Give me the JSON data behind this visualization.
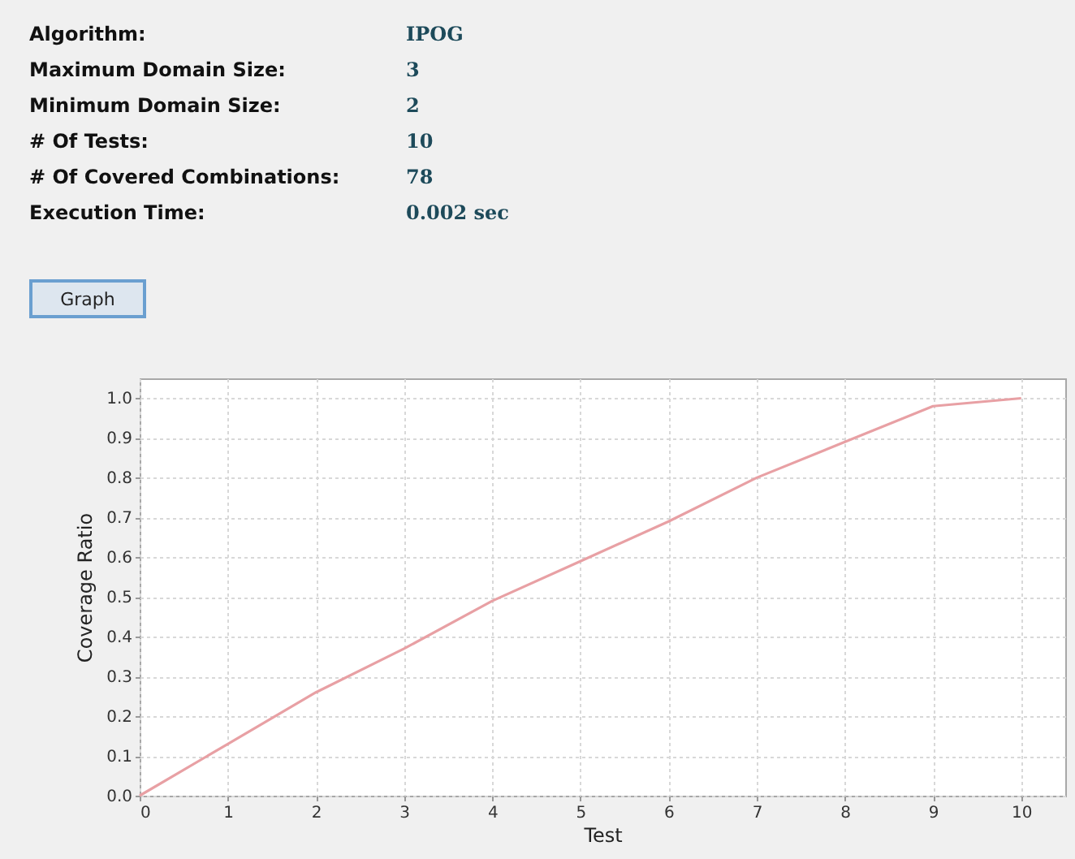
{
  "chart_data": [
    {
      "type": "other",
      "annotations": [
        "Algorithm:",
        "IPOG",
        "Maximum Domain Size:",
        "3",
        "Minimum Domain Size:",
        "2",
        "# Of Tests:",
        "10",
        "# Of Covered Combinations:",
        "78",
        "Execution Time:",
        "0.002 sec",
        "Graph"
      ]
    },
    {
      "type": "line",
      "xlabel": "Test",
      "ylabel": "Coverage Ratio",
      "x": [
        0,
        1,
        2,
        3,
        4,
        5,
        6,
        7,
        8,
        9,
        10
      ],
      "series": [
        {
          "color": "#e8a0a4",
          "values": [
            0,
            0.13,
            0.26,
            0.37,
            0.49,
            0.59,
            0.69,
            0.8,
            0.89,
            0.98,
            1.0
          ]
        }
      ],
      "xlim": [
        0,
        10.5
      ],
      "xticks": [
        0,
        1,
        2,
        3,
        4,
        5,
        6,
        7,
        8,
        9,
        10
      ],
      "ylim": [
        0,
        1.05
      ],
      "yticks": [
        {
          "value": 0,
          "label": "0.0"
        },
        0.1,
        0.2,
        0.3,
        0.4,
        0.5,
        0.6,
        0.7,
        0.8,
        0.9,
        {
          "value": 1,
          "label": "1.0"
        }
      ],
      "grid": true,
      "marker": "none",
      "line_style": "solid"
    }
  ]
}
